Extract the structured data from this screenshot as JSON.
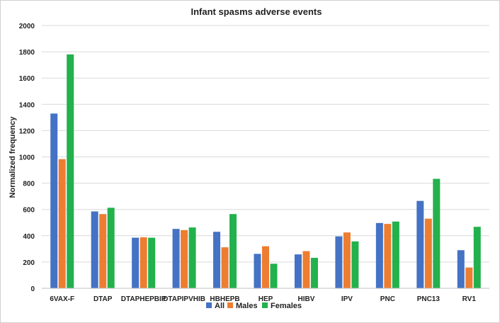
{
  "chart_data": {
    "type": "bar",
    "title": "Infant spasms adverse events",
    "xlabel": "",
    "ylabel": "Normalized frequency",
    "ylim": [
      0,
      2000
    ],
    "yticks": [
      0,
      200,
      400,
      600,
      800,
      1000,
      1200,
      1400,
      1600,
      1800,
      2000
    ],
    "grid": true,
    "legend_position": "bottom",
    "categories": [
      "6VAX-F",
      "DTAP",
      "DTAPHEPBIP",
      "DTAPIPVHIB",
      "HBHEPB",
      "HEP",
      "HIBV",
      "IPV",
      "PNC",
      "PNC13",
      "RV1"
    ],
    "series": [
      {
        "name": "All",
        "color": "#4472c4",
        "values": [
          1330,
          585,
          385,
          452,
          430,
          262,
          258,
          395,
          497,
          665,
          290
        ]
      },
      {
        "name": "Males",
        "color": "#ed7d31",
        "values": [
          983,
          565,
          388,
          443,
          312,
          320,
          283,
          425,
          490,
          530,
          158
        ]
      },
      {
        "name": "Females",
        "color": "#22b14c",
        "values": [
          1780,
          613,
          385,
          463,
          565,
          187,
          232,
          357,
          508,
          833,
          468
        ]
      }
    ]
  }
}
